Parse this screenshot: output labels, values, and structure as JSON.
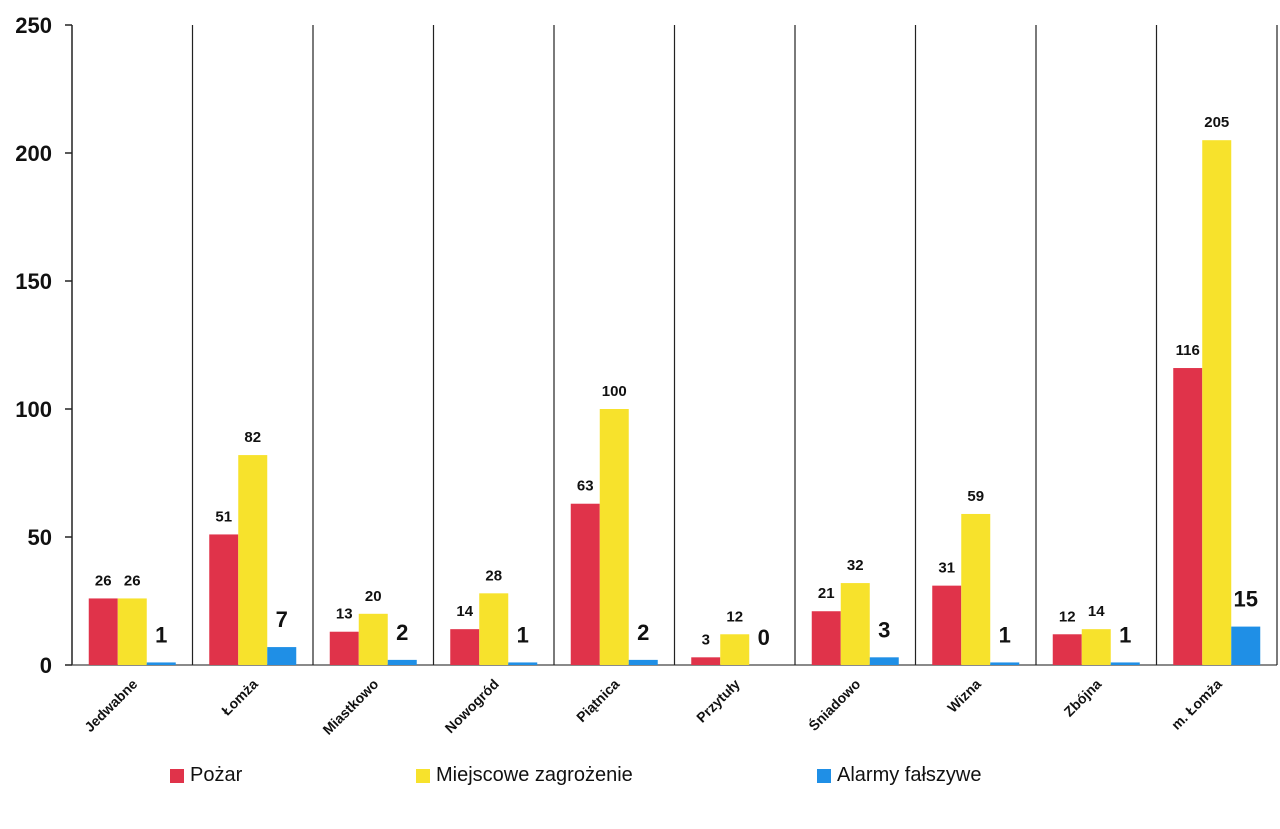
{
  "chart_data": {
    "type": "bar",
    "categories": [
      "Jedwabne",
      "Łomża",
      "Miastkowo",
      "Nowogród",
      "Piątnica",
      "Przytuły",
      "Śniadowo",
      "Wizna",
      "Zbójna",
      "m. Łomża"
    ],
    "series": [
      {
        "name": "Pożar",
        "color": "#e0334a",
        "values": [
          26,
          51,
          13,
          14,
          63,
          3,
          21,
          31,
          12,
          116
        ]
      },
      {
        "name": "Miejscowe zagrożenie",
        "color": "#f7e22c",
        "values": [
          26,
          82,
          20,
          28,
          100,
          12,
          32,
          59,
          14,
          205
        ]
      },
      {
        "name": "Alarmy fałszywe",
        "color": "#1f8fe6",
        "values": [
          1,
          7,
          2,
          1,
          2,
          0,
          3,
          1,
          1,
          15
        ]
      }
    ],
    "ylim": [
      0,
      250
    ],
    "yticks": [
      0,
      50,
      100,
      150,
      200,
      250
    ],
    "grid": false,
    "legend_position": "bottom"
  },
  "legend": {
    "items": [
      {
        "label": "Pożar",
        "color": "#e0334a"
      },
      {
        "label": "Miejscowe zagrożenie",
        "color": "#f7e22c"
      },
      {
        "label": "Alarmy fałszywe",
        "color": "#1f8fe6"
      }
    ]
  }
}
